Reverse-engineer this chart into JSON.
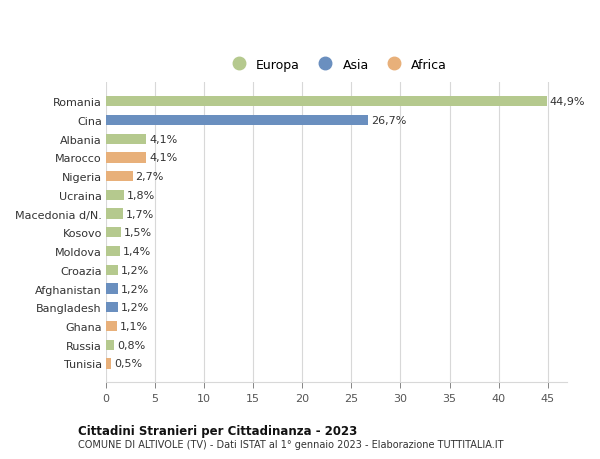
{
  "countries": [
    "Romania",
    "Cina",
    "Albania",
    "Marocco",
    "Nigeria",
    "Ucraina",
    "Macedonia d/N.",
    "Kosovo",
    "Moldova",
    "Croazia",
    "Afghanistan",
    "Bangladesh",
    "Ghana",
    "Russia",
    "Tunisia"
  ],
  "values": [
    44.9,
    26.7,
    4.1,
    4.1,
    2.7,
    1.8,
    1.7,
    1.5,
    1.4,
    1.2,
    1.2,
    1.2,
    1.1,
    0.8,
    0.5
  ],
  "labels": [
    "44,9%",
    "26,7%",
    "4,1%",
    "4,1%",
    "2,7%",
    "1,8%",
    "1,7%",
    "1,5%",
    "1,4%",
    "1,2%",
    "1,2%",
    "1,2%",
    "1,1%",
    "0,8%",
    "0,5%"
  ],
  "continents": [
    "Europa",
    "Asia",
    "Europa",
    "Africa",
    "Africa",
    "Europa",
    "Europa",
    "Europa",
    "Europa",
    "Europa",
    "Asia",
    "Asia",
    "Africa",
    "Europa",
    "Africa"
  ],
  "colors": {
    "Europa": "#b5c98e",
    "Asia": "#6a8fbf",
    "Africa": "#e8b07a"
  },
  "title_main": "Cittadini Stranieri per Cittadinanza - 2023",
  "title_sub": "COMUNE DI ALTIVOLE (TV) - Dati ISTAT al 1° gennaio 2023 - Elaborazione TUTTITALIA.IT",
  "xlim": [
    0,
    47
  ],
  "xticks": [
    0,
    5,
    10,
    15,
    20,
    25,
    30,
    35,
    40,
    45
  ],
  "background_color": "#ffffff",
  "grid_color": "#d8d8d8",
  "bar_height": 0.55,
  "label_fontsize": 8,
  "ytick_fontsize": 8,
  "xtick_fontsize": 8
}
